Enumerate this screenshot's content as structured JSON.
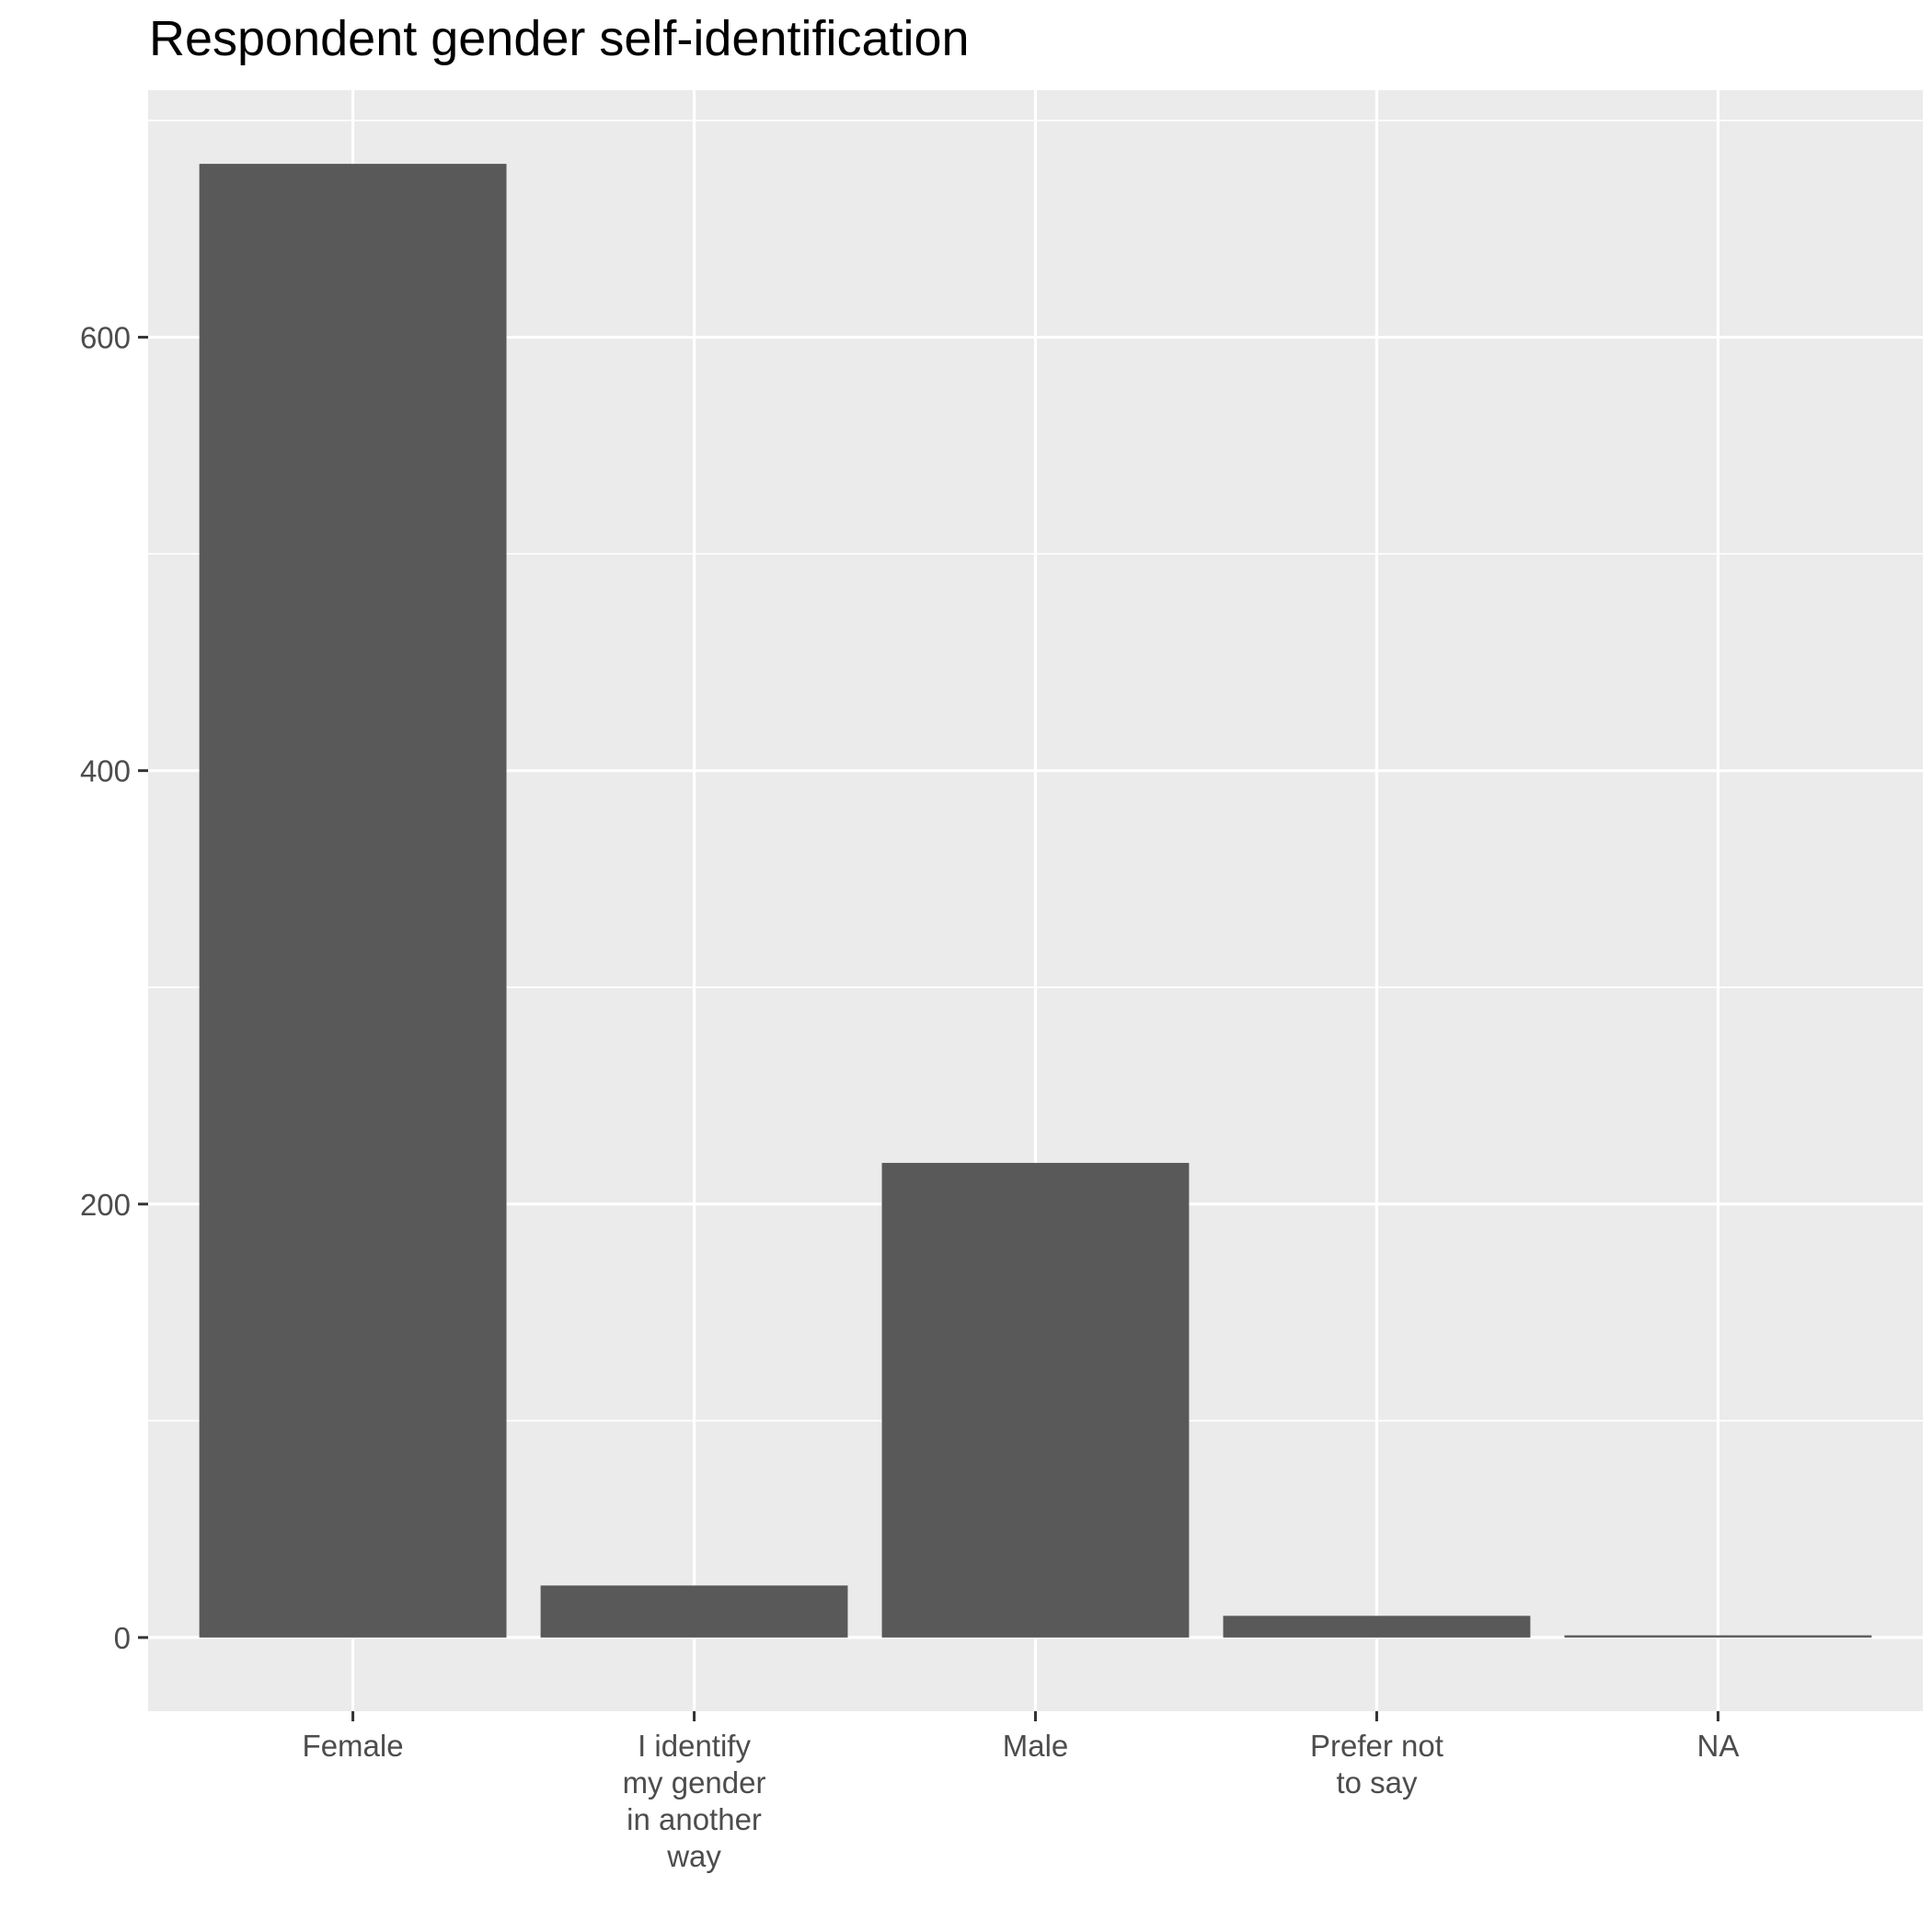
{
  "chart_data": {
    "type": "bar",
    "title": "Respondent gender self-identification",
    "xlabel": "",
    "ylabel": "",
    "categories": [
      "Female",
      "I identify my gender in another way",
      "Male",
      "Prefer not to say",
      "NA"
    ],
    "category_label_lines": [
      [
        "Female"
      ],
      [
        "I identify",
        "my gender",
        "in another",
        "way"
      ],
      [
        "Male"
      ],
      [
        "Prefer not",
        "to say"
      ],
      [
        "NA"
      ]
    ],
    "values": [
      680,
      24,
      219,
      10,
      1
    ],
    "ylim": [
      -34,
      714
    ],
    "yticks": [
      0,
      200,
      400,
      600
    ],
    "ytick_labels": [
      "0",
      "200",
      "400",
      "600"
    ],
    "grid": true,
    "legend": "none",
    "colors": {
      "bar": "#595959",
      "panel": "#ebebeb",
      "grid_major": "#ffffff",
      "grid_minor": "#ffffff",
      "tick": "#333333",
      "tick_label": "#4d4d4d",
      "title": "#000000",
      "background": "#ffffff"
    }
  }
}
